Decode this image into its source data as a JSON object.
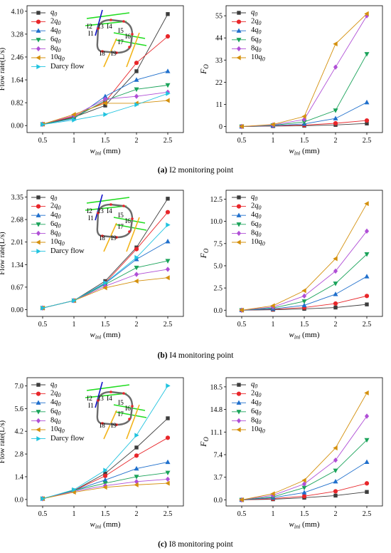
{
  "captions": [
    {
      "letter": "(a)",
      "text": "I2 monitoring point"
    },
    {
      "letter": "(b)",
      "text": "I4 monitoring point"
    },
    {
      "letter": "(c)",
      "text": "I8 monitoring point"
    }
  ],
  "inset_labels": [
    "I1",
    "I2",
    "I3",
    "I4",
    "I5",
    "I6",
    "I7",
    "I8",
    "I9"
  ],
  "colors": {
    "q0": "#3d3d3d",
    "2q0": "#e8262a",
    "4q0": "#1f6fcc",
    "6q0": "#1aa35a",
    "8q0": "#b04fd6",
    "10q0": "#d4900d",
    "darcy": "#20c3df",
    "pipe": "#6b6b6b",
    "fracture_green": "#22dd22",
    "fracture_yellow": "#f2b41b",
    "fracture_blue": "#1414cc"
  },
  "chart_data": [
    {
      "type": "line",
      "panel": "a-left",
      "xlabel": "w_ini (mm)",
      "ylabel": "Flow rate(L/s)",
      "x": [
        0.5,
        1,
        1.5,
        2,
        2.5
      ],
      "ylim": [
        -0.25,
        4.3
      ],
      "yticks": [
        0.0,
        0.82,
        1.64,
        2.46,
        3.28,
        4.1
      ],
      "series": [
        {
          "name": "q0",
          "values": [
            0.05,
            0.3,
            0.72,
            1.95,
            4.0
          ]
        },
        {
          "name": "2q0",
          "values": [
            0.05,
            0.33,
            0.85,
            2.25,
            3.2
          ]
        },
        {
          "name": "4q0",
          "values": [
            0.05,
            0.25,
            1.05,
            1.64,
            1.95
          ]
        },
        {
          "name": "6q0",
          "values": [
            0.05,
            0.28,
            0.9,
            1.3,
            1.45
          ]
        },
        {
          "name": "8q0",
          "values": [
            0.05,
            0.36,
            0.95,
            1.05,
            1.2
          ]
        },
        {
          "name": "10q0",
          "values": [
            0.05,
            0.4,
            0.8,
            0.8,
            0.9
          ]
        },
        {
          "name": "Darcy flow",
          "values": [
            0.04,
            0.2,
            0.4,
            0.75,
            1.15
          ]
        }
      ]
    },
    {
      "type": "line",
      "panel": "a-right",
      "xlabel": "w_ini (mm)",
      "ylabel": "F_O",
      "x": [
        0.5,
        1,
        1.5,
        2,
        2.5
      ],
      "ylim": [
        -3,
        60
      ],
      "yticks": [
        0,
        11,
        22,
        33,
        44,
        55
      ],
      "series": [
        {
          "name": "q0",
          "values": [
            0.0,
            0.2,
            0.4,
            0.8,
            1.5
          ]
        },
        {
          "name": "2q0",
          "values": [
            0.0,
            0.3,
            0.7,
            1.6,
            3.0
          ]
        },
        {
          "name": "4q0",
          "values": [
            0.0,
            0.4,
            1.3,
            4.0,
            12.0
          ]
        },
        {
          "name": "6q0",
          "values": [
            0.0,
            0.6,
            2.3,
            8.0,
            36.0
          ]
        },
        {
          "name": "8q0",
          "values": [
            0.0,
            0.8,
            3.5,
            29.5,
            55.0
          ]
        },
        {
          "name": "10q0",
          "values": [
            0.0,
            1.0,
            5.0,
            41.0,
            56.0
          ]
        }
      ]
    },
    {
      "type": "line",
      "panel": "b-left",
      "xlabel": "w_ini (mm)",
      "ylabel": "Flow rate(L/s)",
      "x": [
        0.5,
        1,
        1.5,
        2,
        2.5
      ],
      "ylim": [
        -0.2,
        3.55
      ],
      "yticks": [
        0.0,
        0.67,
        1.34,
        2.01,
        2.68,
        3.35
      ],
      "series": [
        {
          "name": "q0",
          "values": [
            0.05,
            0.27,
            0.85,
            1.85,
            3.3
          ]
        },
        {
          "name": "2q0",
          "values": [
            0.05,
            0.27,
            0.8,
            1.8,
            2.9
          ]
        },
        {
          "name": "4q0",
          "values": [
            0.05,
            0.27,
            0.78,
            1.5,
            2.03
          ]
        },
        {
          "name": "6q0",
          "values": [
            0.05,
            0.27,
            0.75,
            1.25,
            1.45
          ]
        },
        {
          "name": "8q0",
          "values": [
            0.05,
            0.27,
            0.7,
            1.05,
            1.2
          ]
        },
        {
          "name": "10q0",
          "values": [
            0.05,
            0.27,
            0.65,
            0.85,
            0.95
          ]
        },
        {
          "name": "Darcy flow",
          "values": [
            0.05,
            0.27,
            0.8,
            1.55,
            2.52
          ]
        }
      ]
    },
    {
      "type": "line",
      "panel": "b-right",
      "xlabel": "w_ini (mm)",
      "ylabel": "F_O",
      "x": [
        0.5,
        1,
        1.5,
        2,
        2.5
      ],
      "ylim": [
        -0.7,
        13.5
      ],
      "yticks": [
        0.0,
        2.5,
        5.0,
        7.5,
        10.0,
        12.5
      ],
      "series": [
        {
          "name": "q0",
          "values": [
            0.0,
            0.05,
            0.15,
            0.3,
            0.65
          ]
        },
        {
          "name": "2q0",
          "values": [
            0.0,
            0.1,
            0.3,
            0.75,
            1.6
          ]
        },
        {
          "name": "4q0",
          "values": [
            0.0,
            0.15,
            0.55,
            1.8,
            3.8
          ]
        },
        {
          "name": "6q0",
          "values": [
            0.0,
            0.25,
            1.0,
            3.0,
            6.3
          ]
        },
        {
          "name": "8q0",
          "values": [
            0.0,
            0.35,
            1.6,
            4.4,
            8.9
          ]
        },
        {
          "name": "10q0",
          "values": [
            0.0,
            0.5,
            2.2,
            5.8,
            12.0
          ]
        }
      ]
    },
    {
      "type": "line",
      "panel": "c-left",
      "xlabel": "w_ini (mm)",
      "ylabel": "Flow rate(L/s)",
      "x": [
        0.5,
        1,
        1.5,
        2,
        2.5
      ],
      "ylim": [
        -0.4,
        7.5
      ],
      "yticks": [
        0.0,
        1.4,
        2.8,
        4.2,
        5.6,
        7.0
      ],
      "series": [
        {
          "name": "q0",
          "values": [
            0.05,
            0.55,
            1.6,
            3.2,
            5.0
          ]
        },
        {
          "name": "2q0",
          "values": [
            0.05,
            0.55,
            1.45,
            2.7,
            3.8
          ]
        },
        {
          "name": "4q0",
          "values": [
            0.05,
            0.55,
            1.2,
            1.9,
            2.3
          ]
        },
        {
          "name": "6q0",
          "values": [
            0.05,
            0.55,
            1.0,
            1.4,
            1.65
          ]
        },
        {
          "name": "8q0",
          "values": [
            0.05,
            0.5,
            0.85,
            1.1,
            1.25
          ]
        },
        {
          "name": "10q0",
          "values": [
            0.05,
            0.45,
            0.75,
            0.9,
            1.0
          ]
        },
        {
          "name": "Darcy flow",
          "values": [
            0.05,
            0.6,
            1.8,
            3.95,
            7.0
          ]
        }
      ]
    },
    {
      "type": "line",
      "panel": "c-right",
      "xlabel": "w_ini (mm)",
      "ylabel": "F_O",
      "x": [
        0.5,
        1,
        1.5,
        2,
        2.5
      ],
      "ylim": [
        -1,
        20
      ],
      "yticks": [
        0.0,
        3.7,
        7.4,
        11.1,
        14.8,
        18.5
      ],
      "series": [
        {
          "name": "q0",
          "values": [
            0.0,
            0.1,
            0.35,
            0.7,
            1.3
          ]
        },
        {
          "name": "2q0",
          "values": [
            0.0,
            0.2,
            0.6,
            1.4,
            2.7
          ]
        },
        {
          "name": "4q0",
          "values": [
            0.0,
            0.35,
            1.2,
            3.0,
            6.2
          ]
        },
        {
          "name": "6q0",
          "values": [
            0.0,
            0.5,
            2.0,
            4.8,
            9.8
          ]
        },
        {
          "name": "8q0",
          "values": [
            0.0,
            0.75,
            2.6,
            6.5,
            13.7
          ]
        },
        {
          "name": "10q0",
          "values": [
            0.0,
            1.0,
            3.2,
            8.5,
            17.5
          ]
        }
      ]
    }
  ]
}
